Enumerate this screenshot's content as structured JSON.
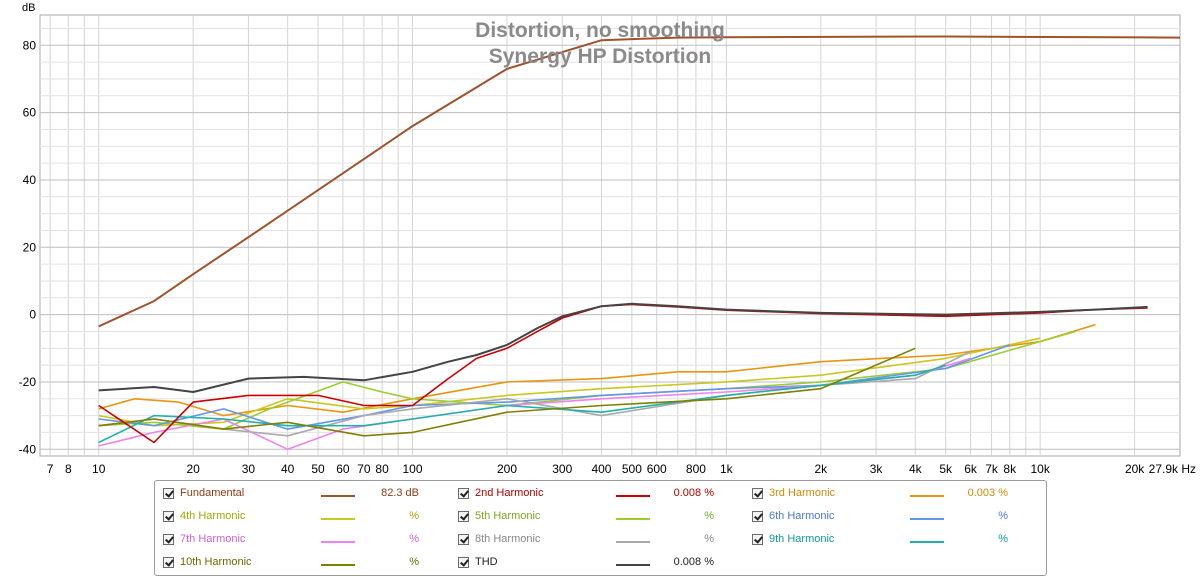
{
  "chart_data": {
    "type": "line",
    "title": "Distortion, no smoothing",
    "subtitle": "Synergy HP Distortion",
    "ylabel": "dB",
    "xlabel": "Hz",
    "x_scale": "log",
    "xlim": [
      6.5,
      27900
    ],
    "ylim": [
      -42,
      89
    ],
    "grid": true,
    "x_ticks": [
      {
        "v": 7,
        "label": "7"
      },
      {
        "v": 8,
        "label": "8"
      },
      {
        "v": 10,
        "label": "10"
      },
      {
        "v": 20,
        "label": "20"
      },
      {
        "v": 30,
        "label": "30"
      },
      {
        "v": 40,
        "label": "40"
      },
      {
        "v": 50,
        "label": "50"
      },
      {
        "v": 60,
        "label": "60"
      },
      {
        "v": 70,
        "label": "70"
      },
      {
        "v": 80,
        "label": "80"
      },
      {
        "v": 100,
        "label": "100"
      },
      {
        "v": 200,
        "label": "200"
      },
      {
        "v": 300,
        "label": "300"
      },
      {
        "v": 400,
        "label": "400"
      },
      {
        "v": 500,
        "label": "500"
      },
      {
        "v": 600,
        "label": "600"
      },
      {
        "v": 800,
        "label": "800"
      },
      {
        "v": 1000,
        "label": "1k"
      },
      {
        "v": 2000,
        "label": "2k"
      },
      {
        "v": 3000,
        "label": "3k"
      },
      {
        "v": 4000,
        "label": "4k"
      },
      {
        "v": 5000,
        "label": "5k"
      },
      {
        "v": 6000,
        "label": "6k"
      },
      {
        "v": 7000,
        "label": "7k"
      },
      {
        "v": 8000,
        "label": "8k"
      },
      {
        "v": 10000,
        "label": "10k"
      },
      {
        "v": 20000,
        "label": "20k"
      },
      {
        "v": 27900,
        "label": "27.9k Hz"
      }
    ],
    "y_ticks": [
      {
        "v": 80,
        "label": "80"
      },
      {
        "v": 60,
        "label": "60"
      },
      {
        "v": 40,
        "label": "40"
      },
      {
        "v": 20,
        "label": "20"
      },
      {
        "v": 0,
        "label": "0"
      },
      {
        "v": -20,
        "label": "-20"
      },
      {
        "v": -40,
        "label": "-40"
      }
    ],
    "series": [
      {
        "name": "Fundamental",
        "color": "#a0522d",
        "x": [
          10,
          15,
          20,
          30,
          50,
          100,
          200,
          400,
          700,
          1000,
          5000,
          27900
        ],
        "y": [
          -3.5,
          4,
          12,
          23,
          37,
          56,
          73,
          81.5,
          82.3,
          82.4,
          82.6,
          82.3
        ]
      },
      {
        "name": "THD",
        "color": "#444444",
        "x": [
          10,
          15,
          20,
          30,
          45,
          70,
          100,
          130,
          160,
          200,
          250,
          300,
          400,
          500,
          700,
          1000,
          2000,
          5000,
          10000,
          15000,
          22000
        ],
        "y": [
          -22.5,
          -21.5,
          -23,
          -19,
          -18.5,
          -19.5,
          -17,
          -14,
          -12,
          -9,
          -4,
          -0.5,
          2.5,
          3.2,
          2.5,
          1.5,
          0.5,
          0,
          0.8,
          1.5,
          2.3
        ]
      },
      {
        "name": "2nd Harmonic",
        "color": "#cc0000",
        "x": [
          10,
          15,
          20,
          30,
          50,
          70,
          100,
          130,
          160,
          200,
          250,
          300,
          400,
          500,
          700,
          1000,
          2000,
          5000,
          10000,
          15000,
          22000
        ],
        "y": [
          -27,
          -38,
          -26,
          -24,
          -24,
          -27,
          -27,
          -19,
          -13,
          -10,
          -5,
          -1,
          2.5,
          3,
          2.3,
          1.3,
          0.3,
          -0.5,
          0.5,
          1.5,
          2
        ]
      },
      {
        "name": "3rd Harmonic",
        "color": "#e8960f",
        "x": [
          10,
          13,
          18,
          25,
          40,
          60,
          100,
          200,
          400,
          700,
          1000,
          2000,
          5000,
          10000,
          15000
        ],
        "y": [
          -28,
          -25,
          -26,
          -30,
          -27,
          -29,
          -25,
          -20,
          -19,
          -17,
          -17,
          -14,
          -12,
          -8,
          -3
        ]
      },
      {
        "name": "4th Harmonic",
        "color": "#c8c81e",
        "x": [
          10,
          15,
          25,
          40,
          70,
          100,
          200,
          400,
          1000,
          2000,
          5000,
          10000
        ],
        "y": [
          -30,
          -33,
          -32,
          -25,
          -28,
          -27,
          -24,
          -22,
          -20,
          -18,
          -13,
          -7
        ]
      },
      {
        "name": "5th Harmonic",
        "color": "#9acd32",
        "x": [
          10,
          15,
          25,
          35,
          60,
          80,
          100,
          200,
          400,
          1000,
          2000,
          5000,
          13000
        ],
        "y": [
          -33,
          -32,
          -34,
          -28,
          -20,
          -23,
          -25,
          -27,
          -24,
          -22,
          -20,
          -16,
          -5
        ]
      },
      {
        "name": "6th Harmonic",
        "color": "#6495ed",
        "x": [
          10,
          15,
          25,
          40,
          70,
          100,
          200,
          400,
          1000,
          2000,
          5000,
          8000
        ],
        "y": [
          -31,
          -33,
          -28,
          -34,
          -30,
          -27,
          -26,
          -24,
          -22,
          -21,
          -16,
          -9
        ]
      },
      {
        "name": "7th Harmonic",
        "color": "#ee82ee",
        "x": [
          10,
          15,
          25,
          40,
          60,
          100,
          200,
          400,
          1000,
          2000,
          4000,
          6000
        ],
        "y": [
          -39,
          -35,
          -31,
          -40,
          -34,
          -31,
          -27,
          -25,
          -23,
          -21,
          -18,
          -13
        ]
      },
      {
        "name": "8th Harmonic",
        "color": "#a9a9a9",
        "x": [
          10,
          15,
          25,
          40,
          70,
          100,
          200,
          400,
          1000,
          2000,
          4000,
          6000
        ],
        "y": [
          -33,
          -31,
          -34,
          -36,
          -30,
          -28,
          -25,
          -30,
          -24,
          -21,
          -19,
          -11
        ]
      },
      {
        "name": "9th Harmonic",
        "color": "#20b2aa",
        "x": [
          10,
          15,
          25,
          40,
          70,
          100,
          200,
          400,
          1000,
          2000,
          4000,
          5000
        ],
        "y": [
          -38,
          -30,
          -31,
          -33,
          -33,
          -31,
          -27,
          -29,
          -24,
          -21,
          -18,
          -15
        ]
      },
      {
        "name": "10th Harmonic",
        "color": "#808000",
        "x": [
          10,
          15,
          25,
          40,
          70,
          100,
          200,
          400,
          1000,
          2000,
          4000
        ],
        "y": [
          -33,
          -31,
          -34,
          -32,
          -36,
          -35,
          -29,
          -27,
          -25,
          -22,
          -10
        ]
      }
    ]
  },
  "legend": [
    {
      "name": "Fundamental",
      "value": "82.3 dB",
      "color": "#a0522d",
      "text_color": "#8b3a1a"
    },
    {
      "name": "2nd Harmonic",
      "value": "0.008 %",
      "color": "#cc0000",
      "text_color": "#b00000"
    },
    {
      "name": "3rd Harmonic",
      "value": "0.003 %",
      "color": "#e8960f",
      "text_color": "#d4880a"
    },
    {
      "name": "4th Harmonic",
      "value": "%",
      "color": "#c8c81e",
      "text_color": "#a5a500"
    },
    {
      "name": "5th Harmonic",
      "value": "%",
      "color": "#9acd32",
      "text_color": "#7aa820"
    },
    {
      "name": "6th Harmonic",
      "value": "%",
      "color": "#6495ed",
      "text_color": "#4a78d0"
    },
    {
      "name": "7th Harmonic",
      "value": "%",
      "color": "#ee82ee",
      "text_color": "#d060d0"
    },
    {
      "name": "8th Harmonic",
      "value": "%",
      "color": "#a9a9a9",
      "text_color": "#888888"
    },
    {
      "name": "9th Harmonic",
      "value": "%",
      "color": "#20b2aa",
      "text_color": "#109a92"
    },
    {
      "name": "10th Harmonic",
      "value": "%",
      "color": "#808000",
      "text_color": "#6a6a00"
    },
    {
      "name": "THD",
      "value": "0.008 %",
      "color": "#444444",
      "text_color": "#222222"
    }
  ]
}
